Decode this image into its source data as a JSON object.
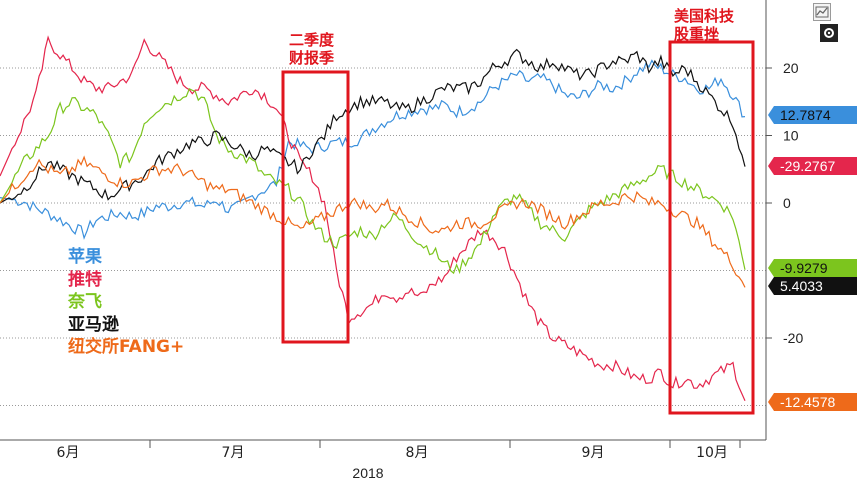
{
  "chart_data": {
    "type": "line",
    "x_ticks": [
      "6月",
      "7月",
      "8月",
      "9月",
      "10月"
    ],
    "x_year": "2018",
    "y_ticks": [
      20,
      10,
      0,
      -20
    ],
    "ylim": [
      -34,
      30
    ],
    "grid": true,
    "legend_position": "left",
    "series": [
      {
        "name": "苹果",
        "color": "#3a8fdc",
        "last": "12.7874",
        "values": [
          0.8,
          0.5,
          0.2,
          -0.8,
          -1.5,
          -2.5,
          -3.5,
          -4.5,
          -2.5,
          -2,
          -1.5,
          -2,
          -1.5,
          -0.5,
          -0.5,
          0,
          0,
          -0.5,
          0.5,
          -1,
          -0.5,
          1,
          2,
          3,
          9,
          8.5,
          8,
          8.5,
          9,
          9,
          9.5,
          11,
          12,
          13,
          13.5,
          14,
          14,
          14.5,
          13.5,
          14,
          15,
          17,
          18,
          19,
          18,
          18.5,
          17.5,
          16,
          15.5,
          16.5,
          17.5,
          17,
          18,
          19.5,
          20.5,
          20,
          19,
          18.5,
          17,
          17,
          18.5,
          16,
          12.8
        ]
      },
      {
        "name": "推特",
        "color": "#e4264c",
        "last": "-29.2767",
        "values": [
          4,
          8,
          12,
          16,
          24,
          22,
          20,
          18,
          17,
          17,
          18,
          19,
          24,
          22,
          20,
          18,
          17,
          17,
          16,
          15,
          16,
          17,
          16,
          14,
          10,
          6,
          4,
          0,
          -10,
          -17,
          -16,
          -15,
          -13,
          -14,
          -13,
          -14,
          -12,
          -11,
          -8,
          -6,
          -4,
          -5,
          -7,
          -11,
          -15,
          -18,
          -20,
          -21,
          -22,
          -23,
          -24,
          -24,
          -25,
          -26,
          -26,
          -25,
          -27,
          -26,
          -27,
          -26,
          -25,
          -24,
          -29.3
        ]
      },
      {
        "name": "奈飞",
        "color": "#7cc51e",
        "last": "-9.9279",
        "values": [
          0,
          3,
          6,
          8,
          10,
          14,
          15,
          14,
          13,
          10,
          6,
          7,
          12,
          14,
          15,
          16,
          17,
          15,
          10,
          8,
          7,
          6,
          4,
          3,
          2,
          0,
          -3,
          -5,
          -6,
          -5,
          -4,
          -5,
          -3,
          -2,
          -4,
          -6,
          -7,
          -9,
          -10,
          -8,
          -6,
          -2,
          0,
          1,
          -1,
          -3,
          -4,
          -5,
          -3,
          -1,
          0,
          1,
          2,
          3,
          4,
          5,
          4,
          3,
          2,
          1,
          0,
          -2,
          -9.9
        ]
      },
      {
        "name": "亚马逊",
        "color": "#111111",
        "last": "5.4033",
        "values": [
          0,
          1,
          2,
          4,
          6,
          5,
          4,
          3,
          2,
          1,
          2,
          3,
          4,
          6,
          7,
          8,
          9,
          9,
          10,
          9,
          8,
          7,
          8,
          7,
          6,
          5,
          8,
          10,
          13,
          14,
          15,
          15,
          15,
          14,
          14,
          15,
          16,
          17,
          17,
          17,
          18,
          20,
          21,
          22,
          21,
          20,
          21,
          20,
          19,
          19,
          20,
          21,
          21,
          22,
          20,
          21,
          19,
          20,
          18,
          16,
          14,
          12,
          5.4
        ]
      },
      {
        "name": "纽交所FANG+",
        "color": "#ee6a1a",
        "last": "-12.4578",
        "values": [
          0,
          2,
          4,
          6,
          5,
          4,
          5,
          6,
          5,
          4,
          3,
          3,
          4,
          5,
          5,
          5,
          4,
          3,
          2,
          2,
          1,
          0,
          -1,
          -2,
          -3,
          -4,
          -3,
          -2,
          -1,
          0,
          0,
          -1,
          0,
          -1,
          -2,
          -3,
          -4,
          -4,
          -3,
          -3,
          -3,
          -2,
          -1,
          0,
          0,
          -1,
          -2,
          -3,
          -2,
          -1,
          0,
          0,
          1,
          1,
          0,
          0,
          -1,
          -2,
          -3,
          -5,
          -7,
          -9,
          -12.5
        ]
      }
    ]
  },
  "annotations": {
    "q2_earnings": [
      "二季度",
      "财报季"
    ],
    "us_tech_selloff": [
      "美国科技",
      "股重挫"
    ]
  },
  "toolbar": {
    "chart_icon": "line-chart-icon",
    "settings_icon": "gear-icon"
  }
}
